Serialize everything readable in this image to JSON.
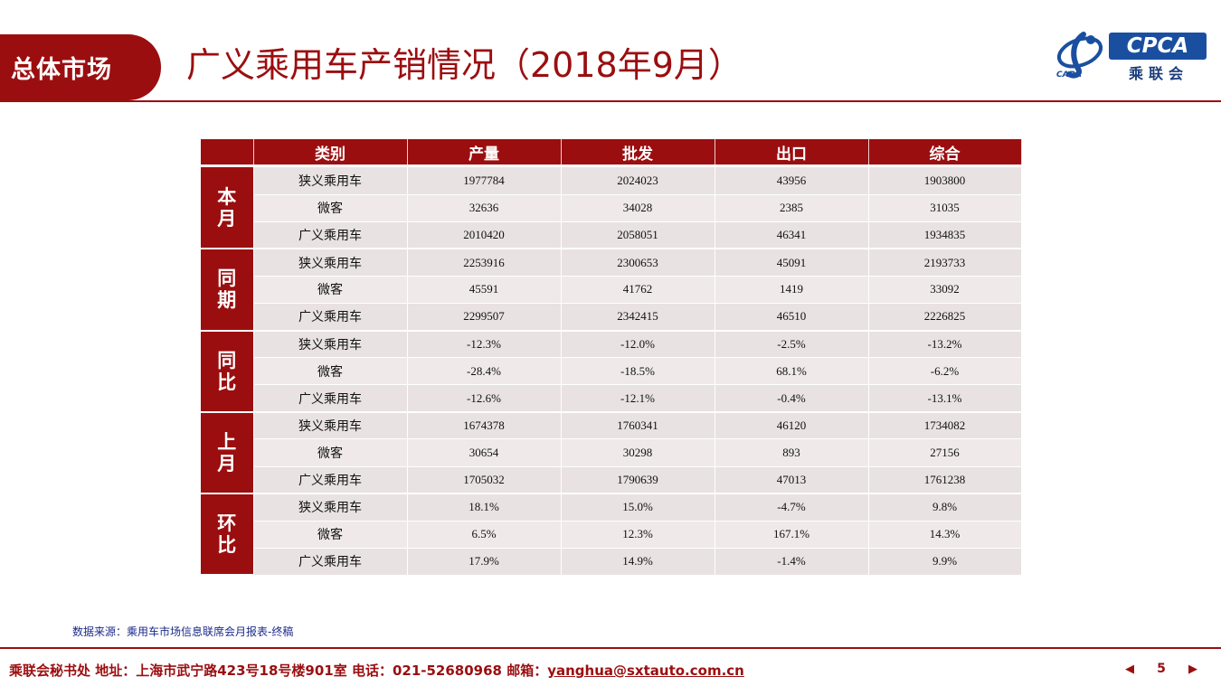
{
  "header": {
    "section_label": "总体市场",
    "title": "广义乘用车产销情况（2018年9月）"
  },
  "logo": {
    "badge_text": "CPCA",
    "chinese_text": "乘联会",
    "sub_text": "CADA",
    "brand_color": "#1a4fa0"
  },
  "table": {
    "columns": [
      "类别",
      "产量",
      "批发",
      "出口",
      "综合"
    ],
    "groups": [
      {
        "label": "本月",
        "rows": [
          {
            "category": "狭义乘用车",
            "values": [
              "1977784",
              "2024023",
              "43956",
              "1903800"
            ]
          },
          {
            "category": "微客",
            "values": [
              "32636",
              "34028",
              "2385",
              "31035"
            ]
          },
          {
            "category": "广义乘用车",
            "values": [
              "2010420",
              "2058051",
              "46341",
              "1934835"
            ]
          }
        ]
      },
      {
        "label": "同期",
        "rows": [
          {
            "category": "狭义乘用车",
            "values": [
              "2253916",
              "2300653",
              "45091",
              "2193733"
            ]
          },
          {
            "category": "微客",
            "values": [
              "45591",
              "41762",
              "1419",
              "33092"
            ]
          },
          {
            "category": "广义乘用车",
            "values": [
              "2299507",
              "2342415",
              "46510",
              "2226825"
            ]
          }
        ]
      },
      {
        "label": "同比",
        "rows": [
          {
            "category": "狭义乘用车",
            "values": [
              "-12.3%",
              "-12.0%",
              "-2.5%",
              "-13.2%"
            ]
          },
          {
            "category": "微客",
            "values": [
              "-28.4%",
              "-18.5%",
              "68.1%",
              "-6.2%"
            ]
          },
          {
            "category": "广义乘用车",
            "values": [
              "-12.6%",
              "-12.1%",
              "-0.4%",
              "-13.1%"
            ]
          }
        ]
      },
      {
        "label": "上月",
        "rows": [
          {
            "category": "狭义乘用车",
            "values": [
              "1674378",
              "1760341",
              "46120",
              "1734082"
            ]
          },
          {
            "category": "微客",
            "values": [
              "30654",
              "30298",
              "893",
              "27156"
            ]
          },
          {
            "category": "广义乘用车",
            "values": [
              "1705032",
              "1790639",
              "47013",
              "1761238"
            ]
          }
        ]
      },
      {
        "label": "环比",
        "rows": [
          {
            "category": "狭义乘用车",
            "values": [
              "18.1%",
              "15.0%",
              "-4.7%",
              "9.8%"
            ]
          },
          {
            "category": "微客",
            "values": [
              "6.5%",
              "12.3%",
              "167.1%",
              "14.3%"
            ]
          },
          {
            "category": "广义乘用车",
            "values": [
              "17.9%",
              "14.9%",
              "-1.4%",
              "9.9%"
            ]
          }
        ]
      }
    ]
  },
  "footer": {
    "source_note": "数据来源：乘用车市场信息联席会月报表-终稿",
    "contact_prefix": "乘联会秘书处   地址：上海市武宁路423号18号楼901室  电话：021-52680968   邮箱：",
    "email": "yanghua@sxtauto.com.cn",
    "prev_icon": "◀",
    "next_icon": "▶",
    "page_number": "5"
  },
  "colors": {
    "accent": "#9b0e10",
    "row_bg": "#ebe4e4",
    "source_text": "#1a2a8a"
  }
}
